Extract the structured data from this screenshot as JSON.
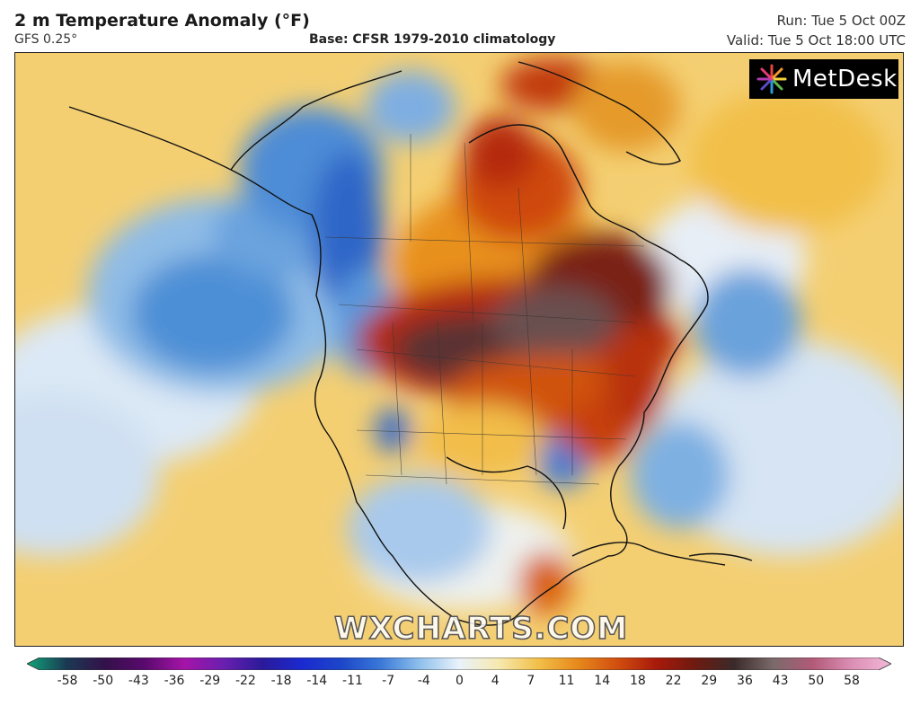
{
  "header": {
    "title": "2 m Temperature Anomaly (°F)",
    "model": "GFS 0.25°",
    "base": "Base: CFSR 1979-2010 climatology",
    "run": "Run: Tue 5 Oct 00Z",
    "valid": "Valid: Tue 5 Oct 18:00 UTC"
  },
  "logo": {
    "text": "MetDesk",
    "icon": "metdesk-starburst-icon"
  },
  "watermark": "WXCHARTS.COM",
  "legend": {
    "ticks": [
      "-58",
      "-50",
      "-43",
      "-36",
      "-29",
      "-22",
      "-18",
      "-14",
      "-11",
      "-7",
      "-4",
      "0",
      "4",
      "7",
      "11",
      "14",
      "18",
      "22",
      "29",
      "36",
      "43",
      "50",
      "58"
    ],
    "colors": [
      "#11a57a",
      "#1a3a52",
      "#34104a",
      "#5a0a6e",
      "#a514a8",
      "#6a1fb0",
      "#2a1a9a",
      "#1b2ad0",
      "#1c46c8",
      "#3a78d8",
      "#8fc0ec",
      "#e9f2fb",
      "#f6e9b0",
      "#f2c04a",
      "#e78a1c",
      "#d2500f",
      "#a91a0a",
      "#6e1a10",
      "#3a2a2a",
      "#7a6a6a",
      "#b25a78",
      "#dc8fb4",
      "#f2b8d8"
    ]
  },
  "map": {
    "region": "North America",
    "colors": {
      "ocean_warm": "#f3c866",
      "ocean_cool": "#bcd6ee",
      "cold_anomaly": "#3b7ad0",
      "deep_cold": "#2348b0",
      "warm_anomaly": "#e38a22",
      "hot_anomaly": "#bf2c0c",
      "extreme_anomaly": "#5c2a24"
    }
  }
}
